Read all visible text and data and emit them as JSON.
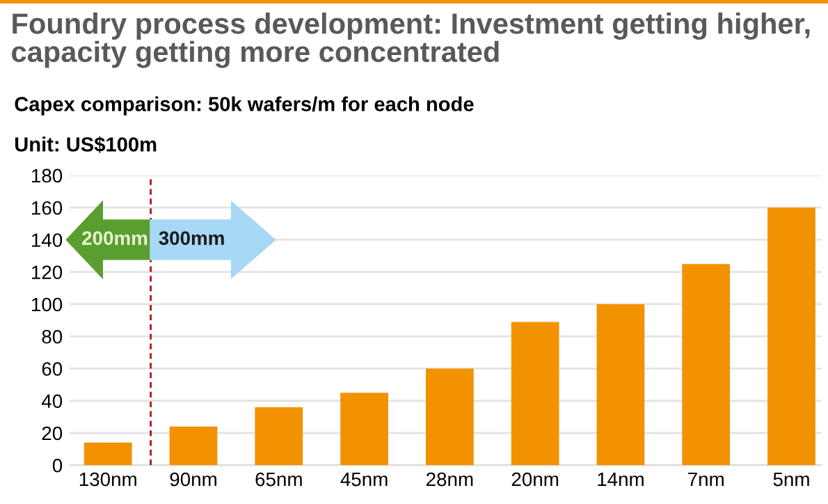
{
  "chart_data": {
    "type": "bar",
    "title": "Foundry process development: Investment getting higher,\ncapacity getting more concentrated",
    "subtitle": "Capex comparison: 50k wafers/m for each node",
    "ylabel": "Unit: US$100m",
    "categories": [
      "130nm",
      "90nm",
      "65nm",
      "45nm",
      "28nm",
      "20nm",
      "14nm",
      "7nm",
      "5nm"
    ],
    "values": [
      14,
      24,
      36,
      45,
      60,
      89,
      100,
      125,
      160
    ],
    "color": "#f39200",
    "ylim": [
      0,
      180
    ],
    "yticks": [
      0,
      20,
      40,
      60,
      80,
      100,
      120,
      140,
      160,
      180
    ],
    "grid": "y",
    "annotations": [
      "200mm",
      "300mm"
    ]
  }
}
